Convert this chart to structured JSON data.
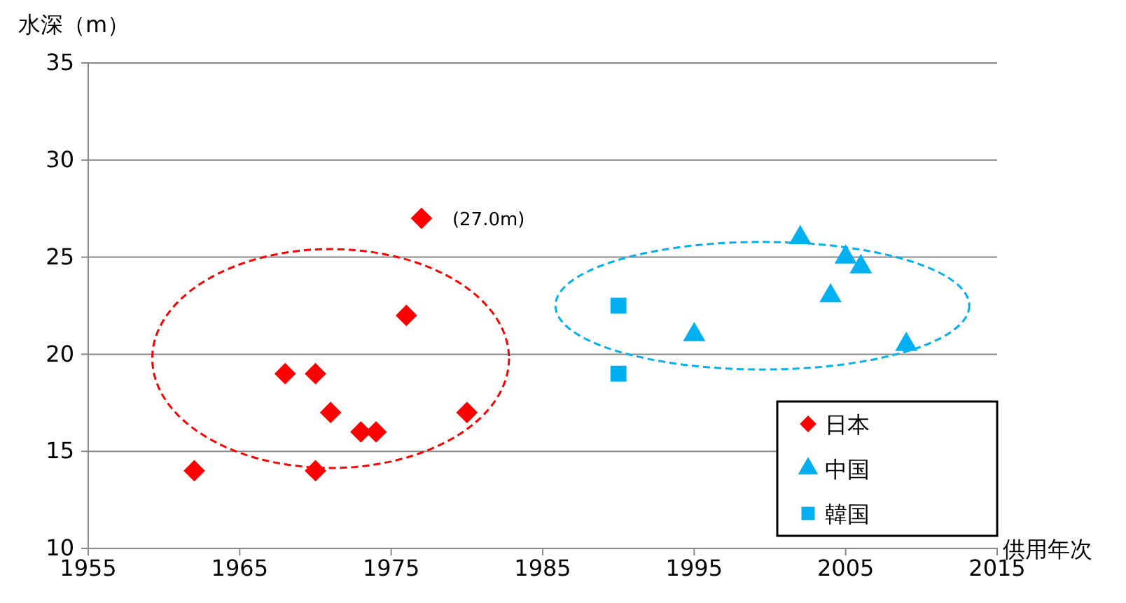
{
  "chart_data": {
    "type": "scatter",
    "ylabel": "水深（m）",
    "xlabel": "供用年次",
    "xlim": [
      1955,
      2015
    ],
    "xticks": [
      1955,
      1965,
      1975,
      1985,
      1995,
      2005,
      2015
    ],
    "ylim": [
      10,
      35
    ],
    "yticks": [
      10,
      15,
      20,
      25,
      30,
      35
    ],
    "grid": "y",
    "legend": "bottom right",
    "series": [
      {
        "name": "日本",
        "color": "#ff0000",
        "marker": "diamond",
        "x": [
          1962,
          1968,
          1970,
          1970,
          1971,
          1973,
          1974,
          1976,
          1977,
          1980
        ],
        "values": [
          14,
          19,
          19,
          14,
          17,
          16,
          16,
          22,
          27,
          17
        ]
      },
      {
        "name": "中国",
        "color": "#00b0f0",
        "marker": "triangle",
        "x": [
          1995,
          2002,
          2005,
          2006,
          2004,
          2009
        ],
        "values": [
          21,
          26,
          25,
          24.5,
          23,
          20.5
        ]
      },
      {
        "name": "韓国",
        "color": "#00b0f0",
        "marker": "square",
        "x": [
          1990,
          1990
        ],
        "values": [
          22.5,
          19
        ]
      }
    ],
    "annotations": [
      {
        "text": "(27.0m)",
        "x": 1977,
        "y": 27
      }
    ]
  }
}
